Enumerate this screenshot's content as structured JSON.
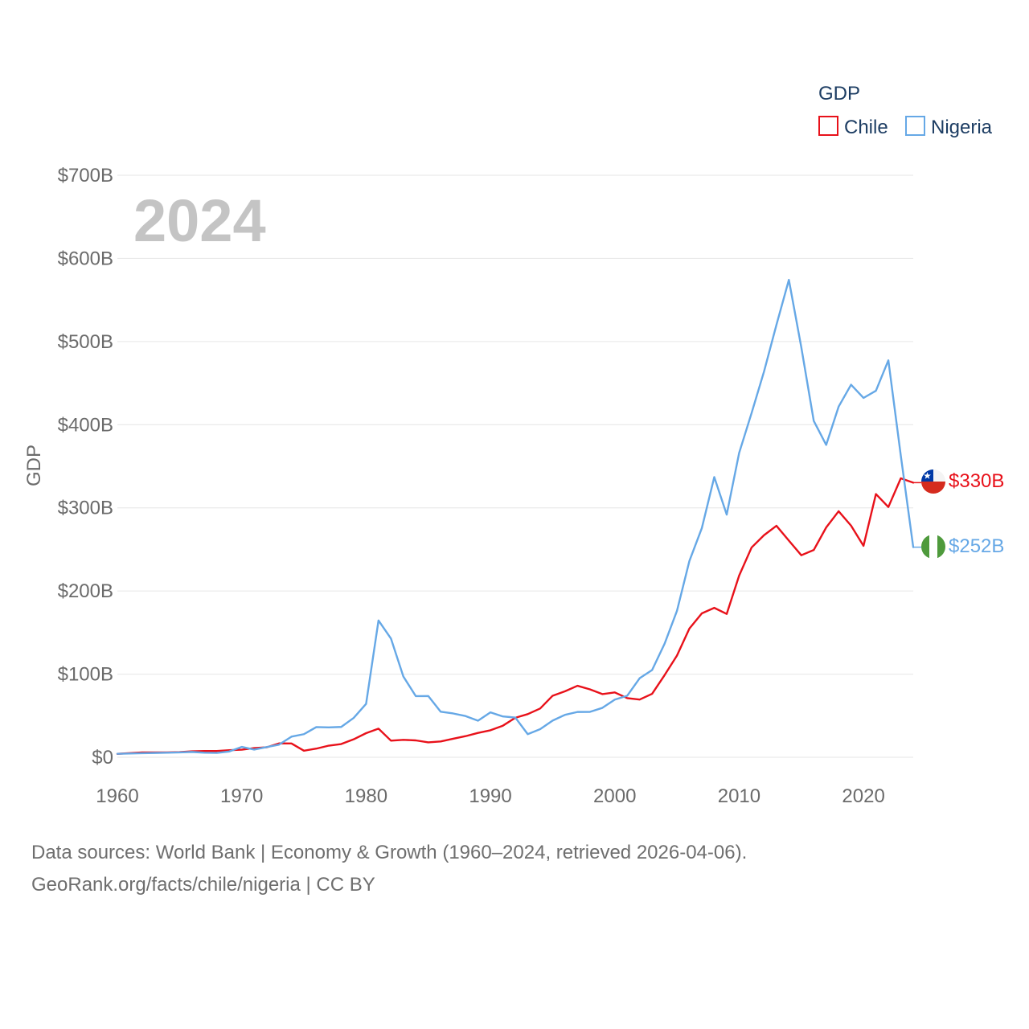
{
  "chart_data": {
    "type": "line",
    "title": "GDP",
    "big_year_label": "2024",
    "ylabel": "GDP",
    "xlabel": "",
    "xlim": [
      1960,
      2024
    ],
    "ylim": [
      0,
      700
    ],
    "unit": "billion USD",
    "x_ticks": [
      1960,
      1970,
      1980,
      1990,
      2000,
      2010,
      2020
    ],
    "x_tick_labels": [
      "1960",
      "1970",
      "1980",
      "1990",
      "2000",
      "2010",
      "2020"
    ],
    "y_ticks": [
      0,
      100,
      200,
      300,
      400,
      500,
      600,
      700
    ],
    "y_tick_labels": [
      "$0",
      "$100B",
      "$200B",
      "$300B",
      "$400B",
      "$500B",
      "$600B",
      "$700B"
    ],
    "grid": true,
    "legend_title": "GDP",
    "legend_position": "top-right",
    "x": [
      1960,
      1961,
      1962,
      1963,
      1964,
      1965,
      1966,
      1967,
      1968,
      1969,
      1970,
      1971,
      1972,
      1973,
      1974,
      1975,
      1976,
      1977,
      1978,
      1979,
      1980,
      1981,
      1982,
      1983,
      1984,
      1985,
      1986,
      1987,
      1988,
      1989,
      1990,
      1991,
      1992,
      1993,
      1994,
      1995,
      1996,
      1997,
      1998,
      1999,
      2000,
      2001,
      2002,
      2003,
      2004,
      2005,
      2006,
      2007,
      2008,
      2009,
      2010,
      2011,
      2012,
      2013,
      2014,
      2015,
      2016,
      2017,
      2018,
      2019,
      2020,
      2021,
      2022,
      2023,
      2024
    ],
    "series": [
      {
        "name": "Chile",
        "color": "#e8111a",
        "flag": "chile-flag",
        "end_label": "$330B",
        "values": [
          4.1,
          5.0,
          5.9,
          5.8,
          5.9,
          6.2,
          7.2,
          7.5,
          7.5,
          8.5,
          9.1,
          11.0,
          12.0,
          16.7,
          16.6,
          7.9,
          10.4,
          14.0,
          15.9,
          21.6,
          29.0,
          34.4,
          20.0,
          21.0,
          20.3,
          17.9,
          19.0,
          22.3,
          25.4,
          29.3,
          32.5,
          38.0,
          47.5,
          51.9,
          58.7,
          74.0,
          79.4,
          86.0,
          81.7,
          76.0,
          78.0,
          71.1,
          69.4,
          76.3,
          98.7,
          122.3,
          154.8,
          173.1,
          179.7,
          172.4,
          218.5,
          252.3,
          267.1,
          278.4,
          260.6,
          243.0,
          249.3,
          276.4,
          295.9,
          278.6,
          254.3,
          316.6,
          301.0,
          335.5,
          330.3
        ]
      },
      {
        "name": "Nigeria",
        "color": "#66a8e6",
        "flag": "nigeria-flag",
        "end_label": "$252B",
        "values": [
          4.2,
          4.5,
          4.9,
          5.2,
          5.5,
          5.9,
          6.4,
          5.5,
          5.3,
          7.0,
          12.5,
          9.2,
          12.3,
          15.2,
          24.8,
          27.8,
          36.3,
          36.0,
          36.5,
          47.3,
          64.2,
          164.5,
          142.8,
          97.1,
          73.5,
          73.7,
          54.8,
          52.7,
          49.6,
          44.0,
          54.0,
          49.1,
          47.8,
          27.8,
          33.8,
          44.1,
          51.1,
          54.5,
          54.6,
          59.4,
          69.4,
          74.0,
          95.1,
          104.9,
          136.4,
          176.1,
          236.1,
          275.6,
          337.0,
          291.9,
          366.0,
          414.0,
          463.9,
          520.1,
          574.2,
          493.0,
          404.6,
          375.7,
          421.7,
          448.1,
          432.2,
          440.8,
          477.4,
          362.8,
          252.7
        ]
      }
    ]
  },
  "source_line_1": "Data sources: World Bank | Economy & Growth (1960–2024, retrieved 2026-04-06).",
  "source_line_2": "GeoRank.org/facts/chile/nigeria | CC BY"
}
